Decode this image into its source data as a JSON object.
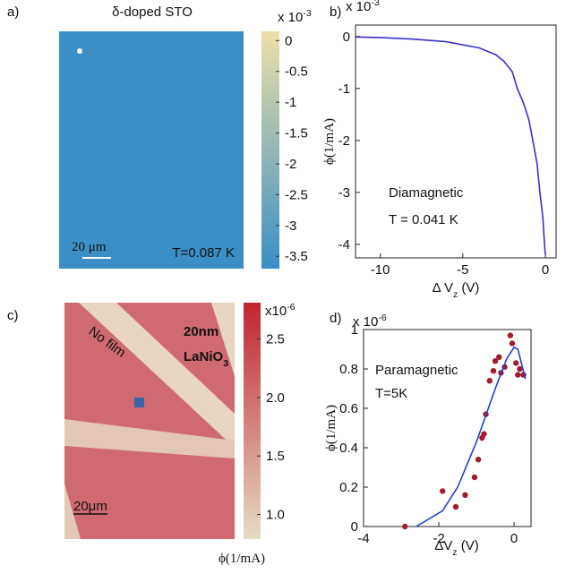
{
  "chart_data": [
    {
      "type": "heatmap",
      "label": "a)",
      "title": "δ-doped STO",
      "multiplier": {
        "base": "x 10",
        "exp": "-3"
      },
      "annotations": [
        "20 μm",
        "T=0.087 K"
      ],
      "clim": [
        -3.7,
        0.15
      ],
      "cticks": [
        0,
        -0.5,
        -1,
        -1.5,
        -2,
        -2.5,
        -3,
        -3.5
      ],
      "colors": [
        "#3a8ec6",
        "#ede0a6"
      ]
    },
    {
      "type": "line",
      "label": "b)",
      "multiplier": {
        "base": "x 10",
        "exp": "-3"
      },
      "xlabel": {
        "main": "Δ V",
        "sub": "z",
        "unit": " (V)"
      },
      "ylabel": "ϕ(1/mA)",
      "annotations": [
        "Diamagnetic",
        "T = 0.041 K"
      ],
      "x": [
        -11.5,
        -10,
        -8,
        -6,
        -4,
        -3,
        -2.5,
        -2,
        -1.7,
        -1.3,
        -1,
        -0.76,
        -0.5,
        -0.33,
        -0.15,
        -0.05,
        0
      ],
      "values": [
        -0.01,
        -0.02,
        -0.05,
        -0.1,
        -0.22,
        -0.35,
        -0.48,
        -0.68,
        -1.0,
        -1.3,
        -1.6,
        -2.0,
        -2.45,
        -3.0,
        -3.5,
        -4.0,
        -4.2
      ],
      "color": "#3a2fd0",
      "xlim": [
        -11.5,
        0.65
      ],
      "ylim": [
        -4.26,
        0.22
      ],
      "xticks": [
        -10,
        -5,
        0
      ],
      "yticks": [
        0,
        -1,
        -2,
        -3,
        -4
      ]
    },
    {
      "type": "heatmap",
      "label": "c)",
      "multiplier": {
        "base": "x10",
        "exp": "-6"
      },
      "annotations": [
        "No film",
        "20μm"
      ],
      "film": {
        "main": "20nm",
        "formula": "LaNiO",
        "sub": "3"
      },
      "clabel": "ϕ(1/mA)",
      "clim": [
        0.79,
        2.81
      ],
      "cticks": [
        2.5,
        {
          "value": 2,
          "label": "2.0"
        },
        1.5,
        {
          "value": 1,
          "label": "1.0"
        }
      ],
      "colors": [
        "#e6dcc2",
        "#c0242f"
      ]
    },
    {
      "type": "scatter",
      "label": "d)",
      "multiplier": {
        "base": "x 10",
        "exp": "-6"
      },
      "xlabel": {
        "main": "ΔV",
        "sub": "z",
        "unit": " (V)"
      },
      "ylabel": "ϕ(1/mA)",
      "annotations": [
        "Paramagnetic",
        "T=5K"
      ],
      "series": [
        {
          "type": "scatter",
          "color": "#a31b2c",
          "x": [
            -2.9,
            -1.9,
            -1.55,
            -1.3,
            -1.05,
            -0.95,
            -0.85,
            -0.8,
            -0.75,
            -0.65,
            -0.55,
            -0.5,
            -0.4,
            -0.35,
            -0.25,
            -0.1,
            -0.05,
            0.05,
            0.1,
            0.15,
            0.25
          ],
          "values": [
            0,
            0.18,
            0.1,
            0.16,
            0.25,
            0.34,
            0.45,
            0.47,
            0.57,
            0.74,
            0.79,
            0.84,
            0.86,
            0.78,
            0.81,
            0.97,
            0.93,
            0.83,
            0.77,
            0.8,
            0.77
          ]
        },
        {
          "type": "line",
          "color": "#1f3fd8",
          "x": [
            -2.6,
            -1.9,
            -1.5,
            -1,
            -0.5,
            -0.2,
            0,
            0.1,
            0.3
          ],
          "values": [
            0,
            0.08,
            0.2,
            0.43,
            0.7,
            0.85,
            0.91,
            0.9,
            0.75
          ]
        }
      ],
      "xlim": [
        -4,
        0.45
      ],
      "ylim": [
        0,
        1
      ],
      "xticks": [
        -4,
        -2,
        0
      ],
      "yticks": [
        0,
        0.2,
        0.4,
        0.6,
        0.8,
        1
      ]
    }
  ]
}
